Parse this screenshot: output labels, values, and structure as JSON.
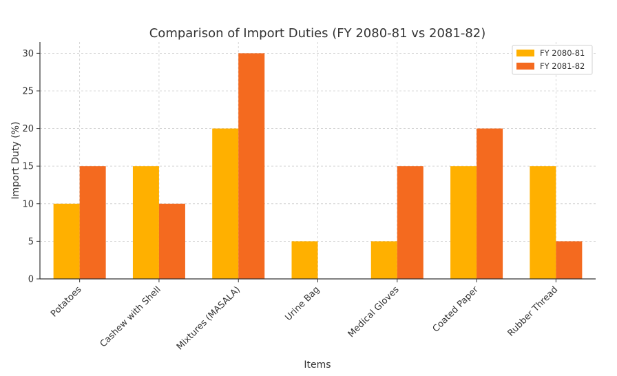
{
  "chart_data": {
    "type": "bar",
    "title": "Comparison of Import Duties (FY 2080-81 vs 2081-82)",
    "xlabel": "Items",
    "ylabel": "Import Duty (%)",
    "categories": [
      "Potatoes",
      "Cashew with Shell",
      "Mixtures (MASALA)",
      "Urine Bag",
      "Medical Gloves",
      "Coated Paper",
      "Rubber Thread"
    ],
    "series": [
      {
        "name": "FY 2080-81",
        "color": "#ffb000",
        "values": [
          10,
          15,
          20,
          5,
          5,
          15,
          15
        ]
      },
      {
        "name": "FY 2081-82",
        "color": "#f46a1f",
        "values": [
          15,
          10,
          30,
          0,
          15,
          20,
          5
        ]
      }
    ],
    "ylim": [
      0,
      31.5
    ],
    "yticks": [
      0,
      5,
      10,
      15,
      20,
      25,
      30
    ],
    "grid": true,
    "legend_position": "top-right"
  }
}
